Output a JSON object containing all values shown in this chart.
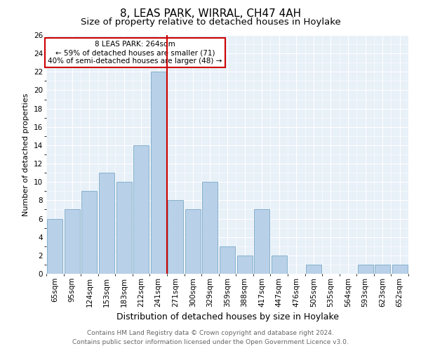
{
  "title": "8, LEAS PARK, WIRRAL, CH47 4AH",
  "subtitle": "Size of property relative to detached houses in Hoylake",
  "xlabel": "Distribution of detached houses by size in Hoylake",
  "ylabel": "Number of detached properties",
  "categories": [
    "65sqm",
    "95sqm",
    "124sqm",
    "153sqm",
    "183sqm",
    "212sqm",
    "241sqm",
    "271sqm",
    "300sqm",
    "329sqm",
    "359sqm",
    "388sqm",
    "417sqm",
    "447sqm",
    "476sqm",
    "505sqm",
    "535sqm",
    "564sqm",
    "593sqm",
    "623sqm",
    "652sqm"
  ],
  "values": [
    6,
    7,
    9,
    11,
    10,
    14,
    22,
    8,
    7,
    10,
    3,
    2,
    7,
    2,
    0,
    1,
    0,
    0,
    1,
    1,
    1
  ],
  "bar_color": "#b8d0e8",
  "bar_edge_color": "#7aaac8",
  "vline_x_index": 6.5,
  "vline_color": "#cc0000",
  "annotation_text": "8 LEAS PARK: 264sqm\n← 59% of detached houses are smaller (71)\n40% of semi-detached houses are larger (48) →",
  "annotation_box_color": "#ffffff",
  "annotation_box_edge": "#cc0000",
  "ylim": [
    0,
    26
  ],
  "yticks": [
    0,
    2,
    4,
    6,
    8,
    10,
    12,
    14,
    16,
    18,
    20,
    22,
    24,
    26
  ],
  "background_color": "#e8f0f8",
  "footer_line1": "Contains HM Land Registry data © Crown copyright and database right 2024.",
  "footer_line2": "Contains public sector information licensed under the Open Government Licence v3.0.",
  "title_fontsize": 11,
  "subtitle_fontsize": 9.5,
  "xlabel_fontsize": 9,
  "ylabel_fontsize": 8,
  "tick_fontsize": 7.5,
  "footer_fontsize": 6.5
}
